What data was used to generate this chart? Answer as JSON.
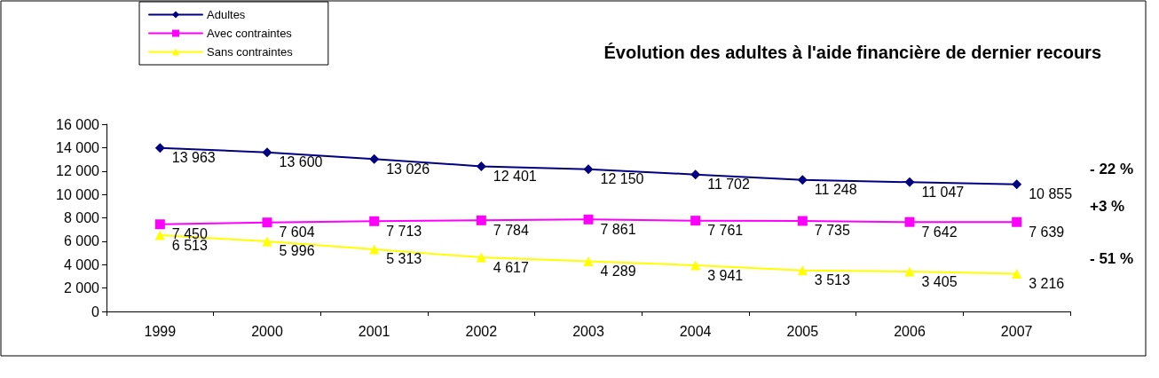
{
  "chart_data": {
    "type": "line",
    "title": "Évolution des adultes à l'aide financière de dernier recours",
    "categories": [
      "1999",
      "2000",
      "2001",
      "2002",
      "2003",
      "2004",
      "2005",
      "2006",
      "2007"
    ],
    "series": [
      {
        "name": "Adultes",
        "color": "#000080",
        "marker": "diamond",
        "values": [
          13963,
          13600,
          13026,
          12401,
          12150,
          11702,
          11248,
          11047,
          10855
        ],
        "value_labels": [
          "13 963",
          "13 600",
          "13 026",
          "12 401",
          "12 150",
          "11 702",
          "11 248",
          "11 047",
          "10 855"
        ]
      },
      {
        "name": "Avec contraintes",
        "color": "#ff00ff",
        "marker": "square",
        "values": [
          7450,
          7604,
          7713,
          7784,
          7861,
          7761,
          7735,
          7642,
          7639
        ],
        "value_labels": [
          "7 450",
          "7 604",
          "7 713",
          "7 784",
          "7 861",
          "7 761",
          "7 735",
          "7 642",
          "7 639"
        ]
      },
      {
        "name": "Sans contraintes",
        "color": "#ffff00",
        "marker": "triangle",
        "values": [
          6513,
          5996,
          5313,
          4617,
          4289,
          3941,
          3513,
          3405,
          3216
        ],
        "value_labels": [
          "6 513",
          "5 996",
          "5 313",
          "4 617",
          "4 289",
          "3 941",
          "3 513",
          "3 405",
          "3 216"
        ]
      }
    ],
    "ylim": [
      0,
      16000
    ],
    "yticks": [
      {
        "value": 0,
        "label": "0"
      },
      {
        "value": 2000,
        "label": "2 000"
      },
      {
        "value": 4000,
        "label": "4 000"
      },
      {
        "value": 6000,
        "label": "6 000"
      },
      {
        "value": 8000,
        "label": "8 000"
      },
      {
        "value": 10000,
        "label": "10 000"
      },
      {
        "value": 12000,
        "label": "12 000"
      },
      {
        "value": 14000,
        "label": "14 000"
      },
      {
        "value": 16000,
        "label": "16 000"
      }
    ],
    "annotations": [
      "- 22 %",
      "+3 %",
      "- 51 %"
    ],
    "grid": false,
    "legend": "top left"
  }
}
